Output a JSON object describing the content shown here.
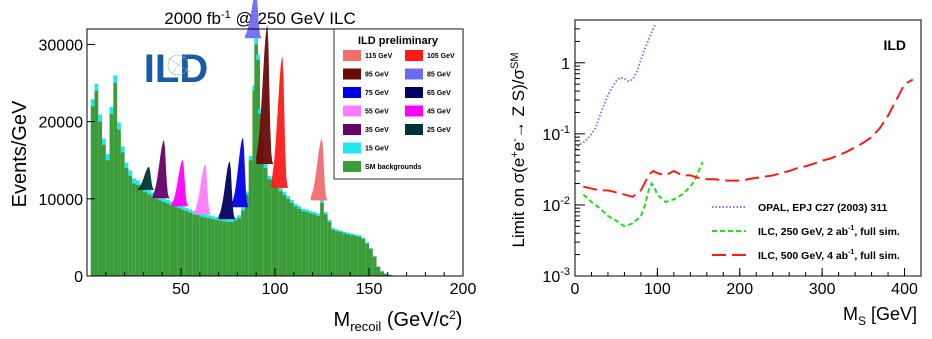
{
  "chart_data": [
    {
      "type": "bar",
      "title": "2000 fb⁻¹ @ 250 GeV ILC",
      "title_parts": {
        "pre": "2000 fb",
        "sup": "-1",
        "post": " @ 250 GeV ILC"
      },
      "xlabel": "M",
      "xlabel_sub": "recoil",
      "xlabel_unit": " (GeV/c",
      "xlabel_sup": "2",
      "xlabel_close": ")",
      "ylabel": "Events/GeV",
      "xlim": [
        0,
        200
      ],
      "ylim": [
        0,
        32000
      ],
      "xticks": [
        "50",
        "100",
        "150",
        "200"
      ],
      "yticks": [
        "0",
        "10000",
        "20000",
        "30000"
      ],
      "legend_placement": "top-right",
      "logo_text": "ILD",
      "legend_title": "ILD preliminary",
      "stacked": true,
      "series": [
        {
          "name": "SM backgrounds",
          "color": "#3a9d3a",
          "x": [
            3,
            5,
            7,
            9,
            11,
            13,
            15,
            17,
            19,
            21,
            23,
            25,
            27,
            29,
            31,
            33,
            35,
            37,
            39,
            41,
            43,
            45,
            47,
            49,
            51,
            53,
            55,
            57,
            59,
            61,
            63,
            65,
            67,
            69,
            71,
            73,
            75,
            77,
            79,
            81,
            83,
            85,
            87,
            89,
            90,
            91,
            92,
            93,
            95,
            97,
            99,
            101,
            103,
            105,
            107,
            109,
            111,
            113,
            115,
            117,
            119,
            121,
            123,
            125,
            127,
            129,
            131,
            133,
            135,
            137,
            139,
            141,
            143,
            145,
            147,
            149,
            151,
            153,
            155,
            157,
            159,
            161,
            163,
            165,
            167,
            169
          ],
          "values": [
            22000,
            24000,
            20000,
            17000,
            15000,
            21000,
            25000,
            19000,
            16000,
            14000,
            13000,
            12000,
            11800,
            11400,
            10900,
            10600,
            10300,
            10000,
            9800,
            9600,
            9400,
            9200,
            9000,
            8800,
            8600,
            8400,
            8200,
            8000,
            7900,
            7700,
            7600,
            7500,
            7400,
            7300,
            7200,
            7100,
            7000,
            7000,
            7200,
            7500,
            8500,
            10500,
            15000,
            24000,
            30000,
            28000,
            21000,
            17000,
            14000,
            12500,
            12000,
            11500,
            11000,
            10500,
            10000,
            9500,
            9000,
            8700,
            8400,
            8300,
            8100,
            8000,
            7800,
            9500,
            8000,
            7000,
            6000,
            5800,
            5700,
            5500,
            5400,
            5300,
            5200,
            5100,
            4800,
            4200,
            3500,
            2500,
            1200,
            600,
            300,
            150,
            80,
            40,
            20,
            10
          ]
        },
        {
          "name": "15 GeV",
          "color": "#20e8f0",
          "x": [
            3,
            5,
            7,
            9,
            11,
            13,
            15,
            17,
            19,
            21,
            23,
            25,
            27,
            29,
            31,
            33,
            35,
            37,
            39,
            41,
            43,
            45,
            47,
            49,
            51,
            53,
            55,
            57,
            59,
            61,
            63,
            65,
            67,
            69,
            71,
            73,
            75,
            77,
            79,
            81,
            83,
            85,
            87,
            89,
            90,
            91,
            92,
            93,
            95,
            97,
            99,
            101,
            103,
            105,
            107,
            109,
            111,
            113,
            115,
            117,
            119,
            121,
            123,
            125,
            127,
            129,
            131,
            133,
            135,
            137,
            139,
            141,
            143,
            145,
            147,
            149,
            151,
            153,
            155,
            157,
            159,
            161,
            163,
            165,
            167,
            169
          ],
          "values": [
            900,
            900,
            900,
            800,
            800,
            900,
            1000,
            900,
            800,
            700,
            700,
            650,
            600,
            600,
            550,
            550,
            520,
            500,
            500,
            480,
            470,
            460,
            450,
            440,
            430,
            420,
            410,
            400,
            390,
            380,
            380,
            370,
            370,
            360,
            360,
            350,
            350,
            350,
            360,
            370,
            400,
            450,
            550,
            700,
            800,
            700,
            600,
            550,
            500,
            470,
            450,
            430,
            410,
            400,
            380,
            360,
            350,
            340,
            330,
            320,
            310,
            300,
            290,
            300,
            280,
            260,
            240,
            230,
            220,
            210,
            200,
            200,
            190,
            180,
            170,
            150,
            120,
            90,
            50,
            20,
            10,
            5,
            3,
            2,
            1,
            0
          ]
        }
      ],
      "peaks": [
        {
          "name": "115 GeV",
          "color": "#f26d6d",
          "center": 125,
          "height": 8000
        },
        {
          "name": "105 GeV",
          "color": "#ff1a1a",
          "center": 104,
          "height": 17000
        },
        {
          "name": "95 GeV",
          "color": "#6a0a0a",
          "center": 96,
          "height": 18000
        },
        {
          "name": "85 GeV",
          "color": "#6c6cf2",
          "center": 90,
          "height": 6000
        },
        {
          "name": "75 GeV",
          "color": "#0000e6",
          "center": 83,
          "height": 9000
        },
        {
          "name": "65 GeV",
          "color": "#000060",
          "center": 76,
          "height": 7500
        },
        {
          "name": "55 GeV",
          "color": "#ff7cff",
          "center": 63,
          "height": 6500
        },
        {
          "name": "45 GeV",
          "color": "#ff00ff",
          "center": 51,
          "height": 6000
        },
        {
          "name": "35 GeV",
          "color": "#660066",
          "center": 41,
          "height": 7500
        },
        {
          "name": "25 GeV",
          "color": "#003333",
          "center": 33,
          "height": 3000
        }
      ]
    },
    {
      "type": "line",
      "xlabel": "M",
      "xlabel_sub": "S",
      "xlabel_unit": " [GeV]",
      "ylabel": "Limit on σ(e⁺e⁻→ Z S)/σ^SM",
      "ylabel_parts": {
        "pre": "Limit on σ(e",
        "sup1": "+",
        "mid1": "e",
        "sup2": "-",
        "mid2": "→ Z S)/σ",
        "sup3": "SM"
      },
      "xlim": [
        0,
        420
      ],
      "ylim": [
        0.001,
        4
      ],
      "yscale": "log",
      "xticks": [
        "0",
        "100",
        "200",
        "300",
        "400"
      ],
      "yticks": [
        {
          "base": "10",
          "exp": "-3",
          "value": 0.001
        },
        {
          "base": "10",
          "exp": "-2",
          "value": 0.01
        },
        {
          "base": "10",
          "exp": "-1",
          "value": 0.1
        },
        {
          "base": "1",
          "exp": "",
          "value": 1
        }
      ],
      "annotation": "ILD",
      "legend_placement": "bottom-right",
      "series": [
        {
          "name": "OPAL, EPJ C27 (2003) 311",
          "color": "#9b6bd8",
          "dash": "1.5,2",
          "x": [
            1,
            5,
            10,
            15,
            20,
            25,
            30,
            35,
            40,
            45,
            50,
            55,
            60,
            65,
            70,
            75,
            80,
            85,
            90,
            95,
            98
          ],
          "y": [
            0.06,
            0.07,
            0.075,
            0.085,
            0.1,
            0.12,
            0.18,
            0.25,
            0.35,
            0.45,
            0.55,
            0.62,
            0.6,
            0.55,
            0.58,
            0.75,
            1.1,
            1.6,
            2.2,
            3.0,
            3.6
          ]
        },
        {
          "name": "ILC, 250 GeV, 2 ab⁻¹, full sim.",
          "name_parts": {
            "pre": "ILC, 250 GeV, 2 ab",
            "sup": "-1",
            "post": ", full sim."
          },
          "color": "#22dd22",
          "dash": "5,3",
          "x": [
            10,
            20,
            30,
            40,
            50,
            60,
            70,
            80,
            85,
            90,
            93,
            96,
            100,
            110,
            120,
            130,
            140,
            145,
            150,
            155
          ],
          "y": [
            0.014,
            0.011,
            0.009,
            0.007,
            0.006,
            0.005,
            0.0055,
            0.007,
            0.01,
            0.017,
            0.02,
            0.018,
            0.014,
            0.011,
            0.012,
            0.014,
            0.018,
            0.022,
            0.03,
            0.04
          ]
        },
        {
          "name": "ILC, 500 GeV, 4 ab⁻¹, full sim.",
          "name_parts": {
            "pre": "ILC, 500 GeV, 4 ab",
            "sup": "-1",
            "post": ", full sim."
          },
          "color": "#ff1a1a",
          "dash": "14,6",
          "x": [
            10,
            20,
            30,
            40,
            50,
            60,
            70,
            80,
            90,
            95,
            100,
            105,
            110,
            115,
            120,
            125,
            130,
            140,
            150,
            160,
            170,
            180,
            190,
            200,
            210,
            220,
            230,
            240,
            250,
            260,
            270,
            280,
            290,
            300,
            310,
            320,
            330,
            340,
            350,
            360,
            370,
            380,
            390,
            400,
            410
          ],
          "y": [
            0.018,
            0.017,
            0.016,
            0.016,
            0.015,
            0.014,
            0.013,
            0.016,
            0.027,
            0.03,
            0.028,
            0.027,
            0.026,
            0.028,
            0.03,
            0.028,
            0.026,
            0.026,
            0.024,
            0.023,
            0.023,
            0.022,
            0.022,
            0.022,
            0.023,
            0.024,
            0.025,
            0.026,
            0.028,
            0.03,
            0.033,
            0.035,
            0.038,
            0.042,
            0.045,
            0.05,
            0.056,
            0.065,
            0.075,
            0.09,
            0.12,
            0.18,
            0.3,
            0.5,
            0.58
          ]
        }
      ]
    }
  ]
}
